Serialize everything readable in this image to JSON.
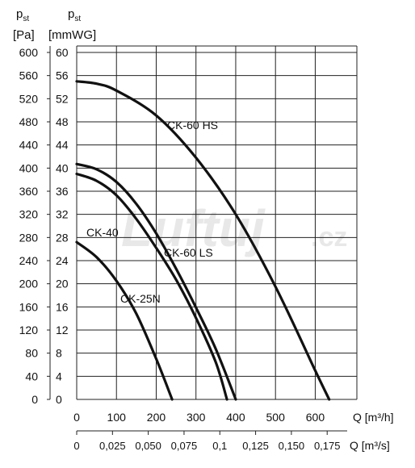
{
  "chart_data": {
    "type": "line",
    "axis_headers": {
      "pa": {
        "symbol": "p",
        "subscript": "st",
        "unit": "[Pa]"
      },
      "mmwg": {
        "symbol": "p",
        "subscript": "st",
        "unit": "[mmWG]"
      }
    },
    "x_label_m3h": "Q [m³/h]",
    "x_label_m3s": "Q [m³/s]",
    "x_ticks_m3h": [
      "0",
      "100",
      "200",
      "300",
      "400",
      "500",
      "600"
    ],
    "x_ticks_m3s": [
      "0",
      "0,025",
      "0,050",
      "0,075",
      "0,1",
      "0,125",
      "0,150",
      "0,175"
    ],
    "y_ticks_pa": [
      "600",
      "560",
      "520",
      "480",
      "440",
      "400",
      "360",
      "320",
      "280",
      "240",
      "200",
      "160",
      "120",
      "80",
      "40",
      "0"
    ],
    "y_ticks_mmwg": [
      "60",
      "56",
      "52",
      "48",
      "44",
      "40",
      "36",
      "32",
      "28",
      "24",
      "20",
      "16",
      "12",
      "8",
      "4",
      "0"
    ],
    "xlim_m3h": [
      0,
      700
    ],
    "ylim_pa": [
      0,
      620
    ],
    "grid": true,
    "series": [
      {
        "name": "CK-60 HS",
        "x": [
          0,
          50,
          100,
          200,
          300,
          400,
          500,
          600,
          635
        ],
        "y": [
          550,
          546,
          534,
          491,
          418,
          320,
          195,
          50,
          0
        ]
      },
      {
        "name": "CK-60 LS",
        "x": [
          0,
          50,
          100,
          150,
          200,
          250,
          300,
          350,
          400
        ],
        "y": [
          407,
          398,
          376,
          338,
          287,
          226,
          159,
          87,
          0
        ]
      },
      {
        "name": "CK-40",
        "x": [
          0,
          50,
          100,
          150,
          200,
          250,
          300,
          350,
          378
        ],
        "y": [
          390,
          378,
          353,
          312,
          262,
          207,
          141,
          64,
          0
        ]
      },
      {
        "name": "CK-25N",
        "x": [
          0,
          50,
          100,
          150,
          200,
          240
        ],
        "y": [
          272,
          246,
          205,
          148,
          70,
          0
        ]
      }
    ]
  },
  "watermark": {
    "text": "Luftuj",
    "suffix": ".cz"
  }
}
